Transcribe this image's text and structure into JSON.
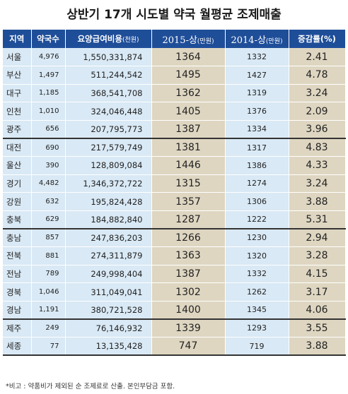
{
  "title": "상반기 17개 시도별 약국 월평균 조제매출",
  "columns": {
    "region": "지역",
    "pharmacies": "약국수",
    "cost": "요양급여비용",
    "cost_unit": "(천원)",
    "y2015": "2015-상",
    "y2015_unit": "(만원)",
    "y2014": "2014-상",
    "y2014_unit": "(만원)",
    "rate": "증감률(%)"
  },
  "groups": [
    [
      {
        "region": "서울",
        "pharmacies": "4,976",
        "cost": "1,550,331,874",
        "y2015": "1364",
        "y2014": "1332",
        "rate": "2.41"
      },
      {
        "region": "부산",
        "pharmacies": "1,497",
        "cost": "511,244,542",
        "y2015": "1495",
        "y2014": "1427",
        "rate": "4.78"
      },
      {
        "region": "대구",
        "pharmacies": "1,185",
        "cost": "368,541,708",
        "y2015": "1362",
        "y2014": "1319",
        "rate": "3.24"
      },
      {
        "region": "인천",
        "pharmacies": "1,010",
        "cost": "324,046,448",
        "y2015": "1405",
        "y2014": "1376",
        "rate": "2.09"
      },
      {
        "region": "광주",
        "pharmacies": "656",
        "cost": "207,795,773",
        "y2015": "1387",
        "y2014": "1334",
        "rate": "3.96"
      }
    ],
    [
      {
        "region": "대전",
        "pharmacies": "690",
        "cost": "217,579,749",
        "y2015": "1381",
        "y2014": "1317",
        "rate": "4.83"
      },
      {
        "region": "울산",
        "pharmacies": "390",
        "cost": "128,809,084",
        "y2015": "1446",
        "y2014": "1386",
        "rate": "4.33"
      },
      {
        "region": "경기",
        "pharmacies": "4,482",
        "cost": "1,346,372,722",
        "y2015": "1315",
        "y2014": "1274",
        "rate": "3.24"
      },
      {
        "region": "강원",
        "pharmacies": "632",
        "cost": "195,824,428",
        "y2015": "1357",
        "y2014": "1306",
        "rate": "3.88"
      },
      {
        "region": "충북",
        "pharmacies": "629",
        "cost": "184,882,840",
        "y2015": "1287",
        "y2014": "1222",
        "rate": "5.31"
      }
    ],
    [
      {
        "region": "충남",
        "pharmacies": "857",
        "cost": "247,836,203",
        "y2015": "1266",
        "y2014": "1230",
        "rate": "2.94"
      },
      {
        "region": "전북",
        "pharmacies": "881",
        "cost": "274,311,879",
        "y2015": "1363",
        "y2014": "1320",
        "rate": "3.28"
      },
      {
        "region": "전남",
        "pharmacies": "789",
        "cost": "249,998,404",
        "y2015": "1387",
        "y2014": "1332",
        "rate": "4.15"
      },
      {
        "region": "경북",
        "pharmacies": "1,046",
        "cost": "311,049,041",
        "y2015": "1302",
        "y2014": "1262",
        "rate": "3.17"
      },
      {
        "region": "경남",
        "pharmacies": "1,191",
        "cost": "380,721,528",
        "y2015": "1400",
        "y2014": "1345",
        "rate": "4.06"
      }
    ],
    [
      {
        "region": "제주",
        "pharmacies": "249",
        "cost": "76,146,932",
        "y2015": "1339",
        "y2014": "1293",
        "rate": "3.55"
      },
      {
        "region": "세종",
        "pharmacies": "77",
        "cost": "13,135,428",
        "y2015": "747",
        "y2014": "719",
        "rate": "3.88"
      }
    ]
  ],
  "note": "*비고 : 약품비가 제외된 순 조제료로 산출. 본인부담금 포함."
}
